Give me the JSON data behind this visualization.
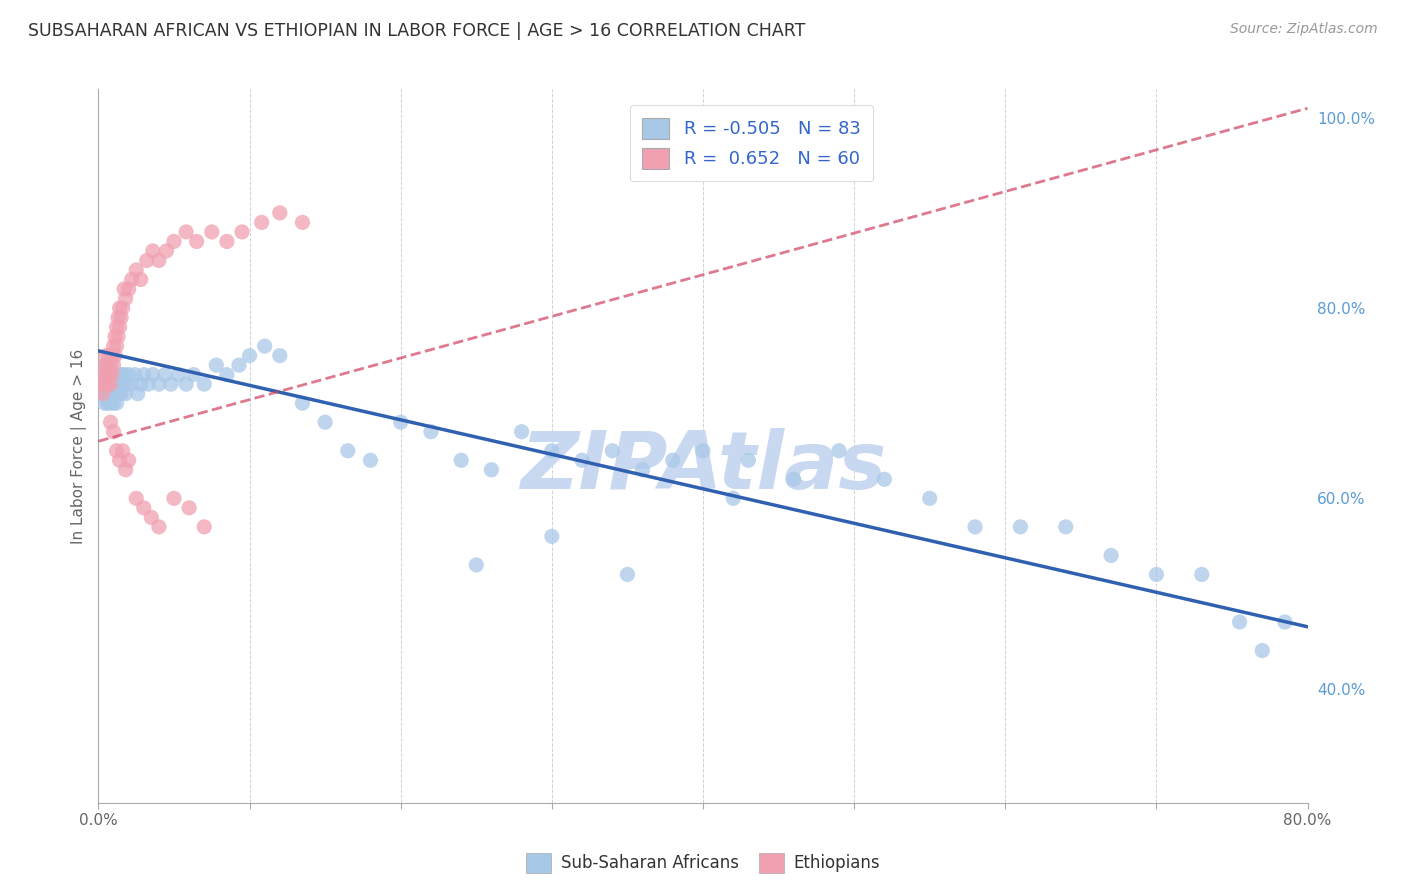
{
  "title": "SUBSAHARAN AFRICAN VS ETHIOPIAN IN LABOR FORCE | AGE > 16 CORRELATION CHART",
  "source": "Source: ZipAtlas.com",
  "ylabel": "In Labor Force | Age > 16",
  "xlim": [
    0.0,
    0.8
  ],
  "ylim": [
    0.28,
    1.03
  ],
  "xticks": [
    0.0,
    0.1,
    0.2,
    0.3,
    0.4,
    0.5,
    0.6,
    0.7,
    0.8
  ],
  "xticklabels": [
    "0.0%",
    "",
    "",
    "",
    "",
    "",
    "",
    "",
    "80.0%"
  ],
  "yticks_right": [
    0.4,
    0.6,
    0.8,
    1.0
  ],
  "ytick_right_labels": [
    "40.0%",
    "60.0%",
    "80.0%",
    "100.0%"
  ],
  "blue_R": -0.505,
  "blue_N": 83,
  "pink_R": 0.652,
  "pink_N": 60,
  "blue_color": "#a8c8e8",
  "pink_color": "#f0a0b0",
  "blue_line_color": "#3060b0",
  "pink_line_color": "#d04060",
  "watermark": "ZIPAtlas",
  "watermark_color": "#c8d8f0",
  "background_color": "#ffffff",
  "title_color": "#333333",
  "grid_color": "#cccccc",
  "blue_scatter_x": [
    0.002,
    0.003,
    0.004,
    0.004,
    0.005,
    0.005,
    0.006,
    0.006,
    0.007,
    0.007,
    0.008,
    0.008,
    0.009,
    0.009,
    0.01,
    0.01,
    0.011,
    0.011,
    0.012,
    0.012,
    0.013,
    0.013,
    0.014,
    0.015,
    0.015,
    0.016,
    0.017,
    0.018,
    0.019,
    0.02,
    0.022,
    0.024,
    0.026,
    0.028,
    0.03,
    0.033,
    0.036,
    0.04,
    0.044,
    0.048,
    0.053,
    0.058,
    0.063,
    0.07,
    0.078,
    0.085,
    0.093,
    0.1,
    0.11,
    0.12,
    0.135,
    0.15,
    0.165,
    0.18,
    0.2,
    0.22,
    0.24,
    0.26,
    0.28,
    0.3,
    0.32,
    0.34,
    0.36,
    0.38,
    0.4,
    0.43,
    0.46,
    0.49,
    0.52,
    0.55,
    0.58,
    0.61,
    0.64,
    0.67,
    0.7,
    0.73,
    0.755,
    0.77,
    0.785,
    0.3,
    0.25,
    0.35,
    0.42
  ],
  "blue_scatter_y": [
    0.71,
    0.72,
    0.7,
    0.73,
    0.71,
    0.74,
    0.72,
    0.7,
    0.73,
    0.71,
    0.72,
    0.7,
    0.73,
    0.71,
    0.72,
    0.7,
    0.73,
    0.71,
    0.72,
    0.7,
    0.73,
    0.71,
    0.72,
    0.73,
    0.71,
    0.72,
    0.73,
    0.71,
    0.72,
    0.73,
    0.72,
    0.73,
    0.71,
    0.72,
    0.73,
    0.72,
    0.73,
    0.72,
    0.73,
    0.72,
    0.73,
    0.72,
    0.73,
    0.72,
    0.74,
    0.73,
    0.74,
    0.75,
    0.76,
    0.75,
    0.7,
    0.68,
    0.65,
    0.64,
    0.68,
    0.67,
    0.64,
    0.63,
    0.67,
    0.65,
    0.64,
    0.65,
    0.63,
    0.64,
    0.65,
    0.64,
    0.62,
    0.65,
    0.62,
    0.6,
    0.57,
    0.57,
    0.57,
    0.54,
    0.52,
    0.52,
    0.47,
    0.44,
    0.47,
    0.56,
    0.53,
    0.52,
    0.6
  ],
  "pink_scatter_x": [
    0.002,
    0.003,
    0.003,
    0.004,
    0.004,
    0.005,
    0.005,
    0.006,
    0.006,
    0.007,
    0.007,
    0.008,
    0.008,
    0.009,
    0.009,
    0.01,
    0.01,
    0.011,
    0.011,
    0.012,
    0.012,
    0.013,
    0.013,
    0.014,
    0.014,
    0.015,
    0.016,
    0.017,
    0.018,
    0.02,
    0.022,
    0.025,
    0.028,
    0.032,
    0.036,
    0.04,
    0.045,
    0.05,
    0.058,
    0.065,
    0.075,
    0.085,
    0.095,
    0.108,
    0.12,
    0.135,
    0.008,
    0.01,
    0.012,
    0.014,
    0.016,
    0.018,
    0.02,
    0.025,
    0.03,
    0.035,
    0.04,
    0.05,
    0.06,
    0.07
  ],
  "pink_scatter_y": [
    0.72,
    0.71,
    0.73,
    0.72,
    0.74,
    0.73,
    0.75,
    0.74,
    0.72,
    0.73,
    0.75,
    0.74,
    0.72,
    0.73,
    0.75,
    0.74,
    0.76,
    0.75,
    0.77,
    0.76,
    0.78,
    0.77,
    0.79,
    0.78,
    0.8,
    0.79,
    0.8,
    0.82,
    0.81,
    0.82,
    0.83,
    0.84,
    0.83,
    0.85,
    0.86,
    0.85,
    0.86,
    0.87,
    0.88,
    0.87,
    0.88,
    0.87,
    0.88,
    0.89,
    0.9,
    0.89,
    0.68,
    0.67,
    0.65,
    0.64,
    0.65,
    0.63,
    0.64,
    0.6,
    0.59,
    0.58,
    0.57,
    0.6,
    0.59,
    0.57
  ],
  "blue_line_x0": 0.0,
  "blue_line_x1": 0.8,
  "blue_line_y0": 0.755,
  "blue_line_y1": 0.465,
  "pink_line_x0": 0.0,
  "pink_line_x1": 0.8,
  "pink_line_y0": 0.66,
  "pink_line_y1": 1.01
}
